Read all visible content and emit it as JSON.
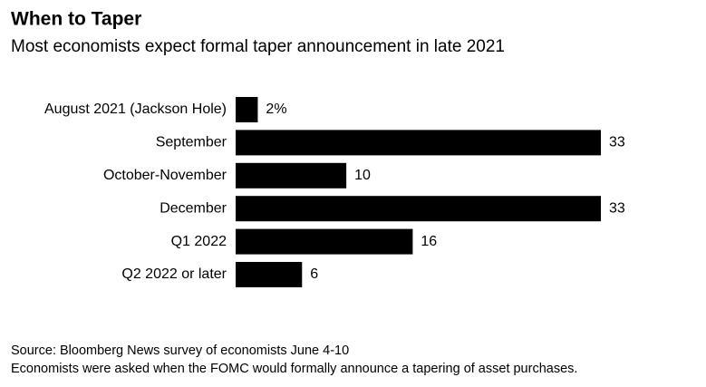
{
  "chart_data": {
    "type": "bar",
    "orientation": "horizontal",
    "title": "When to Taper",
    "subtitle": "Most economists expect formal taper announcement in late 2021",
    "categories": [
      "August 2021 (Jackson Hole)",
      "September",
      "October-November",
      "December",
      "Q1 2022",
      "Q2 2022 or later"
    ],
    "values": [
      2,
      33,
      10,
      33,
      16,
      6
    ],
    "value_labels": [
      "2%",
      "33",
      "10",
      "33",
      "16",
      "6"
    ],
    "color": "#000000",
    "source": "Source: Bloomberg News survey of economists June 4-10",
    "note": "Economists were asked when the FOMC would formally announce a tapering of asset purchases."
  }
}
